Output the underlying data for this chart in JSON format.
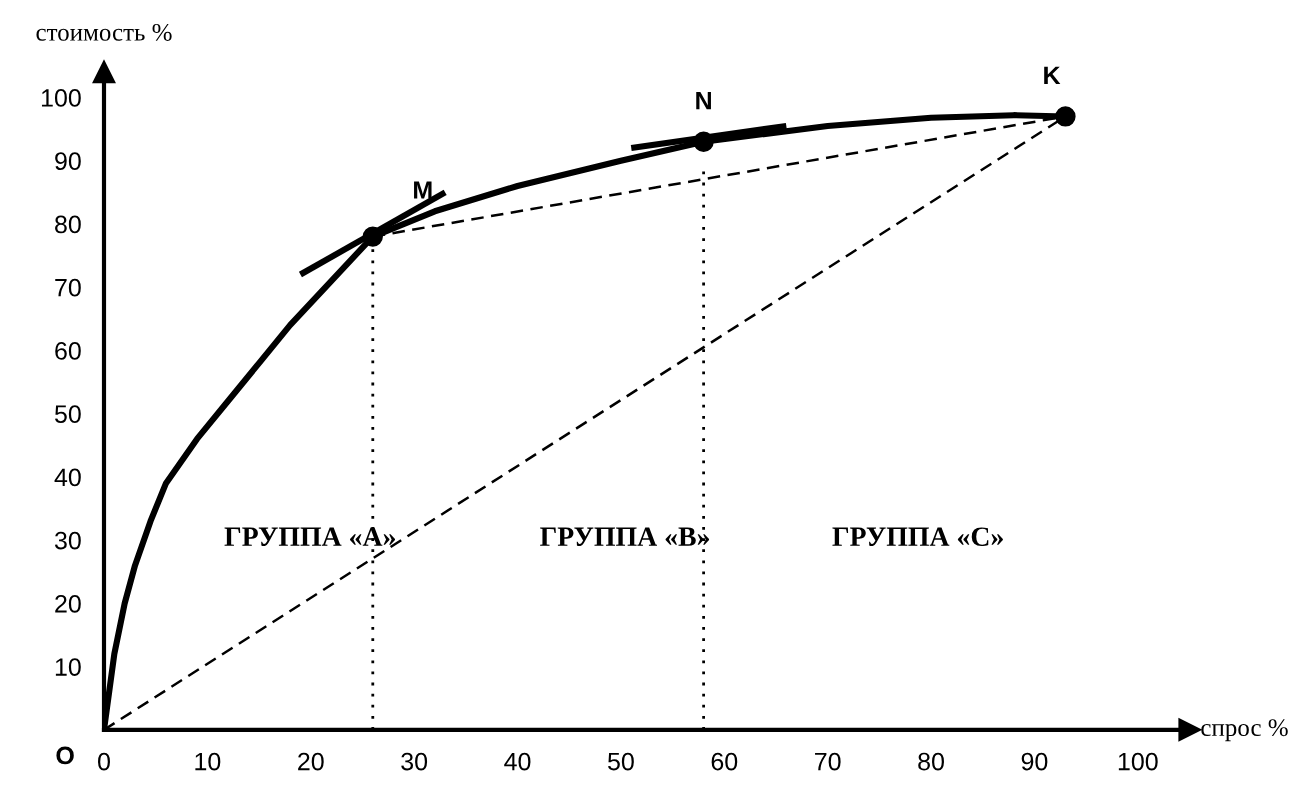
{
  "chart_data": {
    "type": "line",
    "xlabel": "спрос %",
    "ylabel": "стоимость %",
    "xlim": [
      0,
      105
    ],
    "ylim": [
      0,
      104
    ],
    "xticks": [
      0,
      10,
      20,
      30,
      40,
      50,
      60,
      70,
      80,
      90,
      100
    ],
    "yticks": [
      10,
      20,
      30,
      40,
      50,
      60,
      70,
      80,
      90,
      100
    ],
    "grid": false,
    "series": [
      {
        "line_style": "solid",
        "color": "#000000",
        "x": [
          0,
          1,
          2,
          3,
          4.5,
          6,
          9,
          12,
          15,
          18,
          22,
          26,
          32,
          40,
          50,
          58,
          70,
          80,
          88,
          93
        ],
        "values": [
          0,
          12,
          20,
          26,
          33,
          39,
          46,
          52,
          58,
          64,
          71,
          78,
          82,
          86,
          90,
          93,
          95.5,
          96.8,
          97.2,
          97
        ]
      },
      {
        "line_style": "solid",
        "color": "#000000",
        "x": [
          19,
          33
        ],
        "values": [
          72,
          85
        ]
      },
      {
        "line_style": "solid",
        "color": "#000000",
        "x": [
          51,
          66
        ],
        "values": [
          92,
          95.5
        ]
      },
      {
        "line_style": "dashed",
        "color": "#000000",
        "x": [
          0,
          93
        ],
        "values": [
          0,
          97
        ]
      },
      {
        "line_style": "dashed",
        "color": "#000000",
        "x": [
          26,
          93
        ],
        "values": [
          78,
          97
        ]
      },
      {
        "line_style": "dotted",
        "color": "#000000",
        "x": [
          26,
          26
        ],
        "values": [
          0,
          78
        ]
      },
      {
        "line_style": "dotted",
        "color": "#000000",
        "x": [
          58,
          58
        ],
        "values": [
          0,
          89
        ]
      },
      {
        "type": "scatter",
        "marker": "circle",
        "color": "#000000",
        "x": [
          26,
          58,
          93
        ],
        "values": [
          78,
          93,
          97
        ]
      }
    ],
    "annotations": [
      {
        "text": "O",
        "x": 0,
        "y": 0
      },
      {
        "text": "M",
        "x": 26,
        "y": 78
      },
      {
        "text": "N",
        "x": 58,
        "y": 93
      },
      {
        "text": "K",
        "x": 93,
        "y": 97
      },
      "ГРУППА «A»",
      "ГРУППА «B»",
      "ГРУППА «C»"
    ]
  }
}
